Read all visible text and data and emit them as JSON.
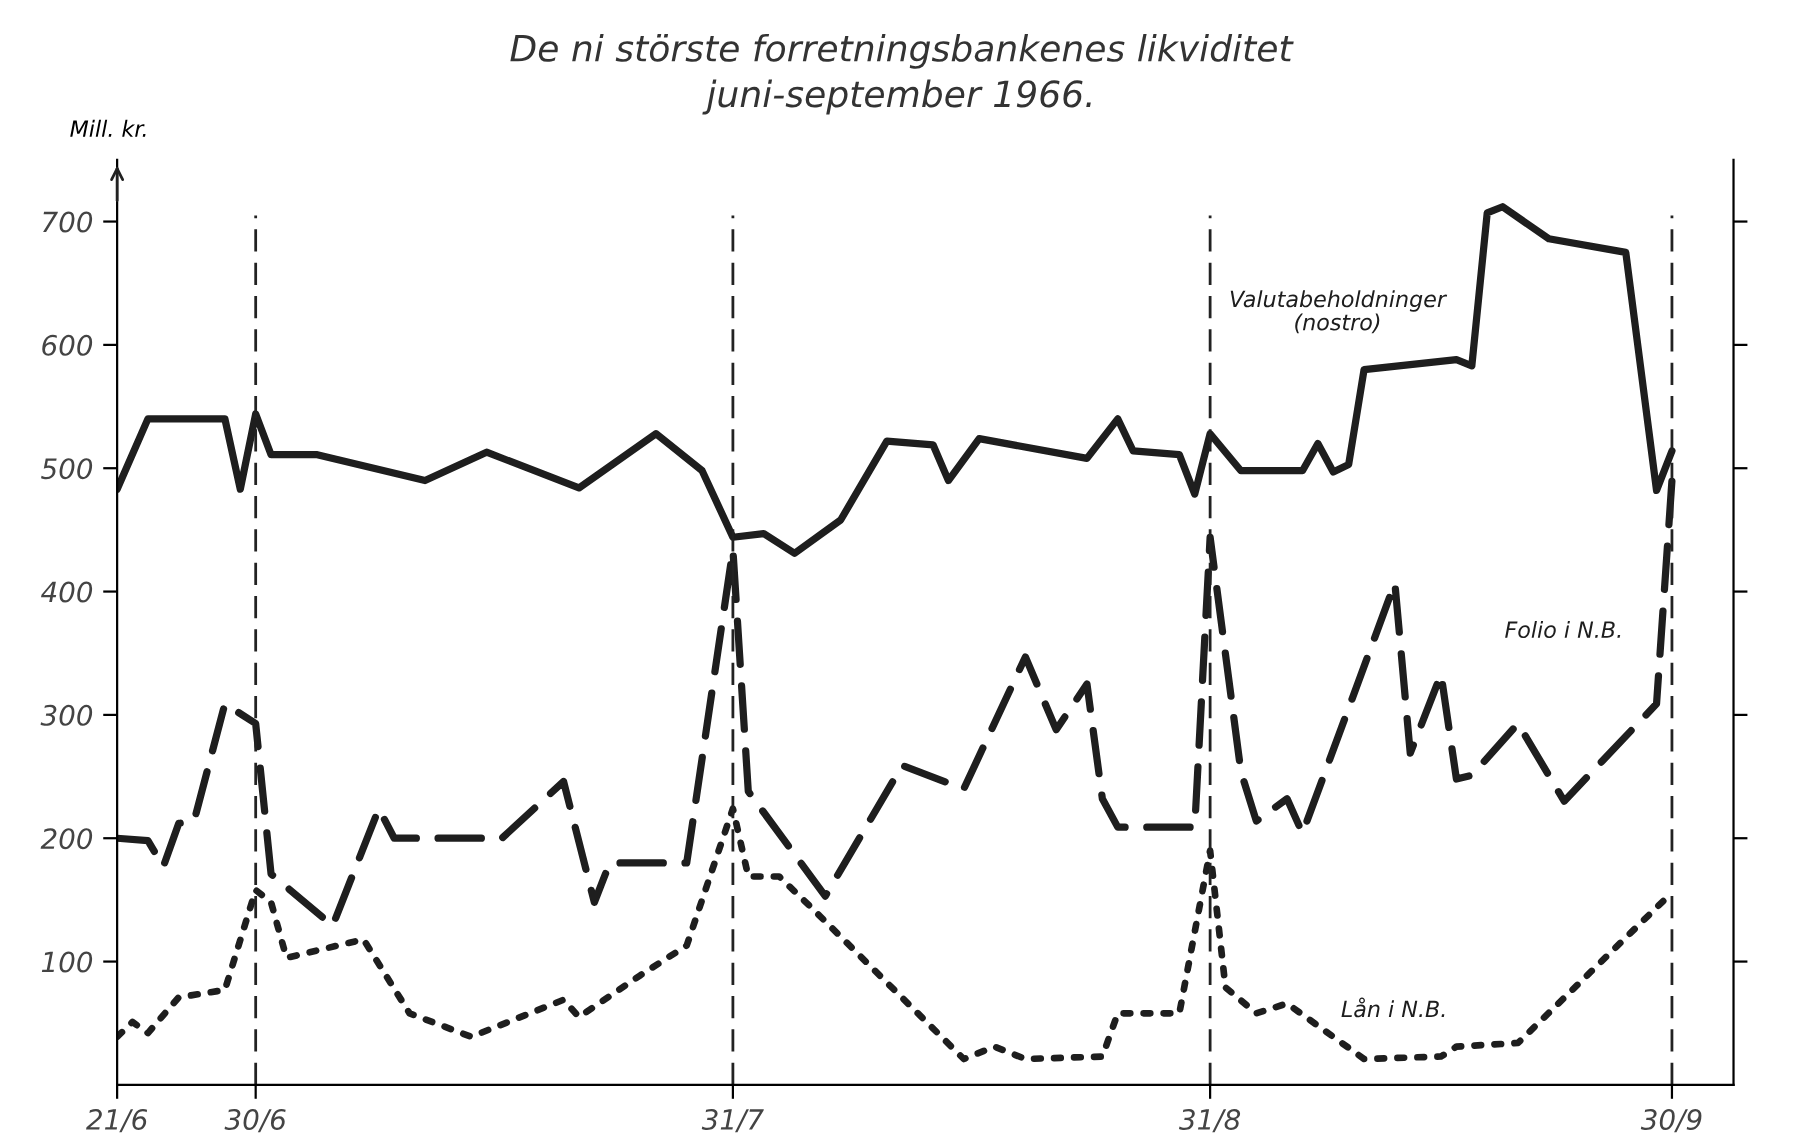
{
  "chart_data": {
    "type": "line",
    "title": "De ni störste forretningsbankenes likviditet",
    "subtitle": "juni-september 1966.",
    "ylabel": "Mill. kr.",
    "xlim": [
      "1966-06-21",
      "1966-10-04"
    ],
    "xticks": [
      {
        "value": "1966-06-21",
        "label": "21/6"
      },
      {
        "value": "1966-06-30",
        "label": "30/6"
      },
      {
        "value": "1966-07-31",
        "label": "31/7"
      },
      {
        "value": "1966-08-31",
        "label": "31/8"
      },
      {
        "value": "1966-09-30",
        "label": "30/9"
      }
    ],
    "ylim": [
      0,
      750
    ],
    "yticks": [
      100,
      200,
      300,
      400,
      500,
      600,
      700
    ],
    "grid": false,
    "legend": false,
    "marker": "none",
    "ref_lines": [
      {
        "axis": "x",
        "value": "1966-06-30",
        "line_style": "dashed",
        "color": "#222222"
      },
      {
        "axis": "x",
        "value": "1966-07-31",
        "line_style": "dashed",
        "color": "#222222"
      },
      {
        "axis": "x",
        "value": "1966-08-31",
        "line_style": "dashed",
        "color": "#222222"
      },
      {
        "axis": "x",
        "value": "1966-09-30",
        "line_style": "dashed",
        "color": "#222222"
      }
    ],
    "series": [
      {
        "name": "Valutabeholdninger (nostro)",
        "color": "#1e1e1e",
        "line_style": "solid",
        "x": [
          "1966-06-21",
          "1966-06-23",
          "1966-06-28",
          "1966-06-29",
          "1966-06-30",
          "1966-07-01",
          "1966-07-04",
          "1966-07-11",
          "1966-07-15",
          "1966-07-21",
          "1966-07-26",
          "1966-07-29",
          "1966-07-31",
          "1966-08-02",
          "1966-08-04",
          "1966-08-07",
          "1966-08-10",
          "1966-08-13",
          "1966-08-14",
          "1966-08-16",
          "1966-08-23",
          "1966-08-25",
          "1966-08-26",
          "1966-08-29",
          "1966-08-30",
          "1966-08-31",
          "1966-09-02",
          "1966-09-06",
          "1966-09-07",
          "1966-09-08",
          "1966-09-09",
          "1966-09-10",
          "1966-09-16",
          "1966-09-17",
          "1966-09-18",
          "1966-09-19",
          "1966-09-22",
          "1966-09-27",
          "1966-09-29",
          "1966-09-30"
        ],
        "values": [
          483,
          540,
          540,
          483,
          544,
          511,
          511,
          490,
          513,
          484,
          528,
          498,
          444,
          447,
          431,
          458,
          522,
          519,
          490,
          524,
          508,
          540,
          514,
          511,
          479,
          528,
          498,
          498,
          520,
          497,
          503,
          580,
          588,
          583,
          707,
          712,
          686,
          675,
          482,
          514
        ]
      },
      {
        "name": "Folio i N.B.",
        "color": "#1e1e1e",
        "line_style": "dashed",
        "x": [
          "1966-06-21",
          "1966-06-23",
          "1966-06-24",
          "1966-06-25",
          "1966-06-26",
          "1966-06-28",
          "1966-06-30",
          "1966-07-01",
          "1966-07-05",
          "1966-07-08",
          "1966-07-09",
          "1966-07-16",
          "1966-07-20",
          "1966-07-22",
          "1966-07-23",
          "1966-07-28",
          "1966-07-31",
          "1966-08-01",
          "1966-08-06",
          "1966-08-11",
          "1966-08-15",
          "1966-08-19",
          "1966-08-21",
          "1966-08-23",
          "1966-08-24",
          "1966-08-25",
          "1966-08-30",
          "1966-08-31",
          "1966-09-02",
          "1966-09-03",
          "1966-09-05",
          "1966-09-06",
          "1966-09-12",
          "1966-09-13",
          "1966-09-15",
          "1966-09-16",
          "1966-09-17",
          "1966-09-20",
          "1966-09-23",
          "1966-09-29",
          "1966-09-30"
        ],
        "values": [
          200,
          198,
          177,
          212,
          214,
          309,
          293,
          171,
          129,
          224,
          200,
          200,
          246,
          148,
          180,
          180,
          434,
          238,
          153,
          259,
          240,
          347,
          288,
          325,
          232,
          209,
          209,
          444,
          254,
          214,
          232,
          204,
          407,
          269,
          333,
          248,
          251,
          293,
          230,
          309,
          490
        ]
      },
      {
        "name": "Lån i N.B.",
        "color": "#1e1e1e",
        "line_style": "dotted",
        "x": [
          "1966-06-21",
          "1966-06-22",
          "1966-06-23",
          "1966-06-25",
          "1966-06-28",
          "1966-06-30",
          "1966-07-01",
          "1966-07-02",
          "1966-07-07",
          "1966-07-10",
          "1966-07-14",
          "1966-07-20",
          "1966-07-21",
          "1966-07-25",
          "1966-07-28",
          "1966-07-31",
          "1966-08-01",
          "1966-08-03",
          "1966-08-05",
          "1966-08-15",
          "1966-08-17",
          "1966-08-19",
          "1966-08-24",
          "1966-08-25",
          "1966-08-29",
          "1966-08-31",
          "1966-09-01",
          "1966-09-03",
          "1966-09-05",
          "1966-09-10",
          "1966-09-15",
          "1966-09-16",
          "1966-09-20",
          "1966-09-30"
        ],
        "values": [
          39,
          51,
          42,
          71,
          77,
          158,
          148,
          103,
          118,
          58,
          39,
          69,
          55,
          89,
          113,
          224,
          169,
          169,
          145,
          21,
          31,
          21,
          23,
          58,
          58,
          190,
          79,
          58,
          66,
          21,
          23,
          31,
          34,
          156
        ]
      }
    ]
  }
}
